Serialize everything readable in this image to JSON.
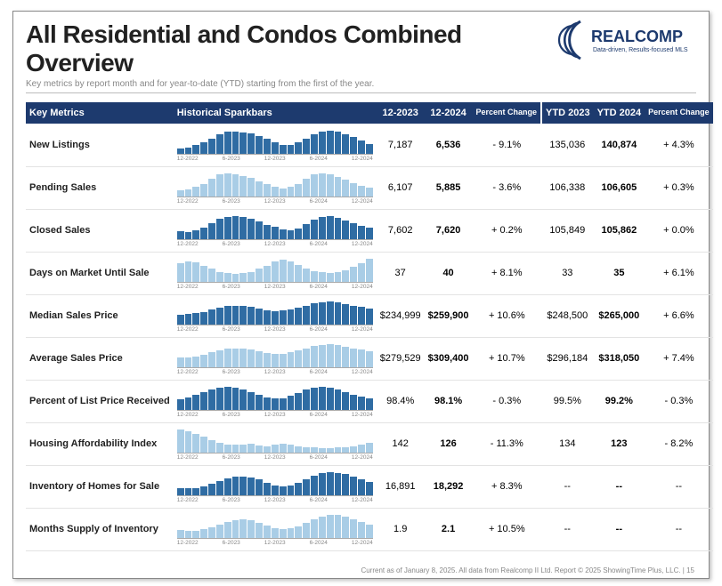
{
  "title": "All Residential and Condos Combined Overview",
  "subtitle": "Key metrics by report month and for year-to-date (YTD) starting from the first of the year.",
  "brand": {
    "name": "REALCOMP",
    "tagline": "Data-driven, Results-focused MLS"
  },
  "columns": {
    "metrics": "Key Metrics",
    "spark": "Historical Sparkbars",
    "m1": "12-2023",
    "m2": "12-2024",
    "pct": "Percent Change",
    "y1": "YTD 2023",
    "y2": "YTD 2024",
    "ypct": "Percent Change"
  },
  "spark_axis": [
    "12-2022",
    "6-2023",
    "12-2023",
    "6-2024",
    "12-2024"
  ],
  "colors": {
    "header_bg": "#1d3a6e",
    "bar_dark": "#2f6ca3",
    "bar_light": "#a9cde6",
    "text": "#212121"
  },
  "rows": [
    {
      "name": "New Listings",
      "shade": "dark",
      "m1": "7,187",
      "m2": "6,536",
      "pct": "- 9.1%",
      "y1": "135,036",
      "y2": "140,874",
      "ypct": "+ 4.3%",
      "spark": [
        20,
        22,
        30,
        42,
        55,
        70,
        78,
        80,
        76,
        72,
        62,
        55,
        40,
        30,
        32,
        40,
        55,
        68,
        80,
        82,
        78,
        70,
        60,
        48,
        35
      ]
    },
    {
      "name": "Pending Sales",
      "shade": "light",
      "m1": "6,107",
      "m2": "5,885",
      "pct": "- 3.6%",
      "y1": "106,338",
      "y2": "106,605",
      "ypct": "+ 0.3%",
      "spark": [
        18,
        22,
        30,
        40,
        55,
        68,
        72,
        70,
        65,
        58,
        48,
        40,
        30,
        26,
        30,
        40,
        55,
        68,
        72,
        70,
        62,
        52,
        42,
        34,
        28
      ]
    },
    {
      "name": "Closed Sales",
      "shade": "dark",
      "m1": "7,602",
      "m2": "7,620",
      "pct": "+ 0.2%",
      "y1": "105,849",
      "y2": "105,862",
      "ypct": "+ 0.0%",
      "spark": [
        28,
        24,
        30,
        40,
        55,
        70,
        78,
        80,
        76,
        70,
        60,
        50,
        42,
        34,
        30,
        38,
        52,
        68,
        78,
        80,
        74,
        64,
        54,
        46,
        40
      ]
    },
    {
      "name": "Days on Market Until Sale",
      "shade": "light",
      "m1": "37",
      "m2": "40",
      "pct": "+ 8.1%",
      "y1": "33",
      "y2": "35",
      "ypct": "+ 6.1%",
      "spark": [
        55,
        60,
        58,
        48,
        38,
        30,
        26,
        24,
        26,
        30,
        38,
        48,
        60,
        65,
        60,
        50,
        40,
        32,
        28,
        26,
        28,
        34,
        44,
        56,
        68
      ]
    },
    {
      "name": "Median Sales Price",
      "shade": "dark",
      "m1": "$234,999",
      "m2": "$259,900",
      "pct": "+ 10.6%",
      "y1": "$248,500",
      "y2": "$265,000",
      "ypct": "+ 6.6%",
      "spark": [
        38,
        40,
        44,
        50,
        58,
        66,
        72,
        74,
        72,
        68,
        62,
        56,
        52,
        54,
        58,
        66,
        74,
        82,
        88,
        90,
        86,
        80,
        74,
        68,
        64
      ]
    },
    {
      "name": "Average Sales Price",
      "shade": "light",
      "m1": "$279,529",
      "m2": "$309,400",
      "pct": "+ 10.7%",
      "y1": "$296,184",
      "y2": "$318,050",
      "ypct": "+ 7.4%",
      "spark": [
        36,
        38,
        42,
        48,
        56,
        64,
        70,
        72,
        70,
        66,
        60,
        54,
        50,
        52,
        56,
        64,
        72,
        80,
        86,
        88,
        84,
        78,
        72,
        66,
        62
      ]
    },
    {
      "name": "Percent of List Price Received",
      "shade": "dark",
      "m1": "98.4%",
      "m2": "98.1%",
      "pct": "- 0.3%",
      "y1": "99.5%",
      "y2": "99.2%",
      "ypct": "- 0.3%",
      "spark": [
        42,
        48,
        58,
        70,
        80,
        88,
        90,
        86,
        78,
        68,
        58,
        50,
        44,
        46,
        54,
        66,
        78,
        86,
        90,
        88,
        80,
        70,
        60,
        52,
        46
      ]
    },
    {
      "name": "Housing Affordability Index",
      "shade": "light",
      "m1": "142",
      "m2": "126",
      "pct": "- 11.3%",
      "y1": "134",
      "y2": "123",
      "ypct": "- 8.2%",
      "spark": [
        85,
        80,
        70,
        58,
        46,
        36,
        30,
        28,
        30,
        34,
        26,
        22,
        30,
        34,
        30,
        24,
        20,
        18,
        16,
        16,
        18,
        20,
        24,
        30,
        36
      ]
    },
    {
      "name": "Inventory of Homes for Sale",
      "shade": "dark",
      "m1": "16,891",
      "m2": "18,292",
      "pct": "+ 8.3%",
      "y1": "--",
      "y2": "--",
      "ypct": "--",
      "spark": [
        30,
        28,
        30,
        36,
        46,
        58,
        68,
        74,
        76,
        72,
        62,
        50,
        40,
        36,
        40,
        50,
        64,
        78,
        88,
        92,
        90,
        84,
        74,
        62,
        52
      ]
    },
    {
      "name": "Months Supply of Inventory",
      "shade": "light",
      "m1": "1.9",
      "m2": "2.1",
      "pct": "+ 10.5%",
      "y1": "--",
      "y2": "--",
      "ypct": "--",
      "spark": [
        28,
        26,
        26,
        30,
        38,
        48,
        58,
        64,
        66,
        62,
        54,
        44,
        36,
        32,
        34,
        42,
        54,
        66,
        76,
        82,
        82,
        76,
        66,
        56,
        48
      ]
    }
  ],
  "footer": "Current as of January 8, 2025. All data from Realcomp II Ltd. Report © 2025 ShowingTime Plus, LLC.  |  15"
}
